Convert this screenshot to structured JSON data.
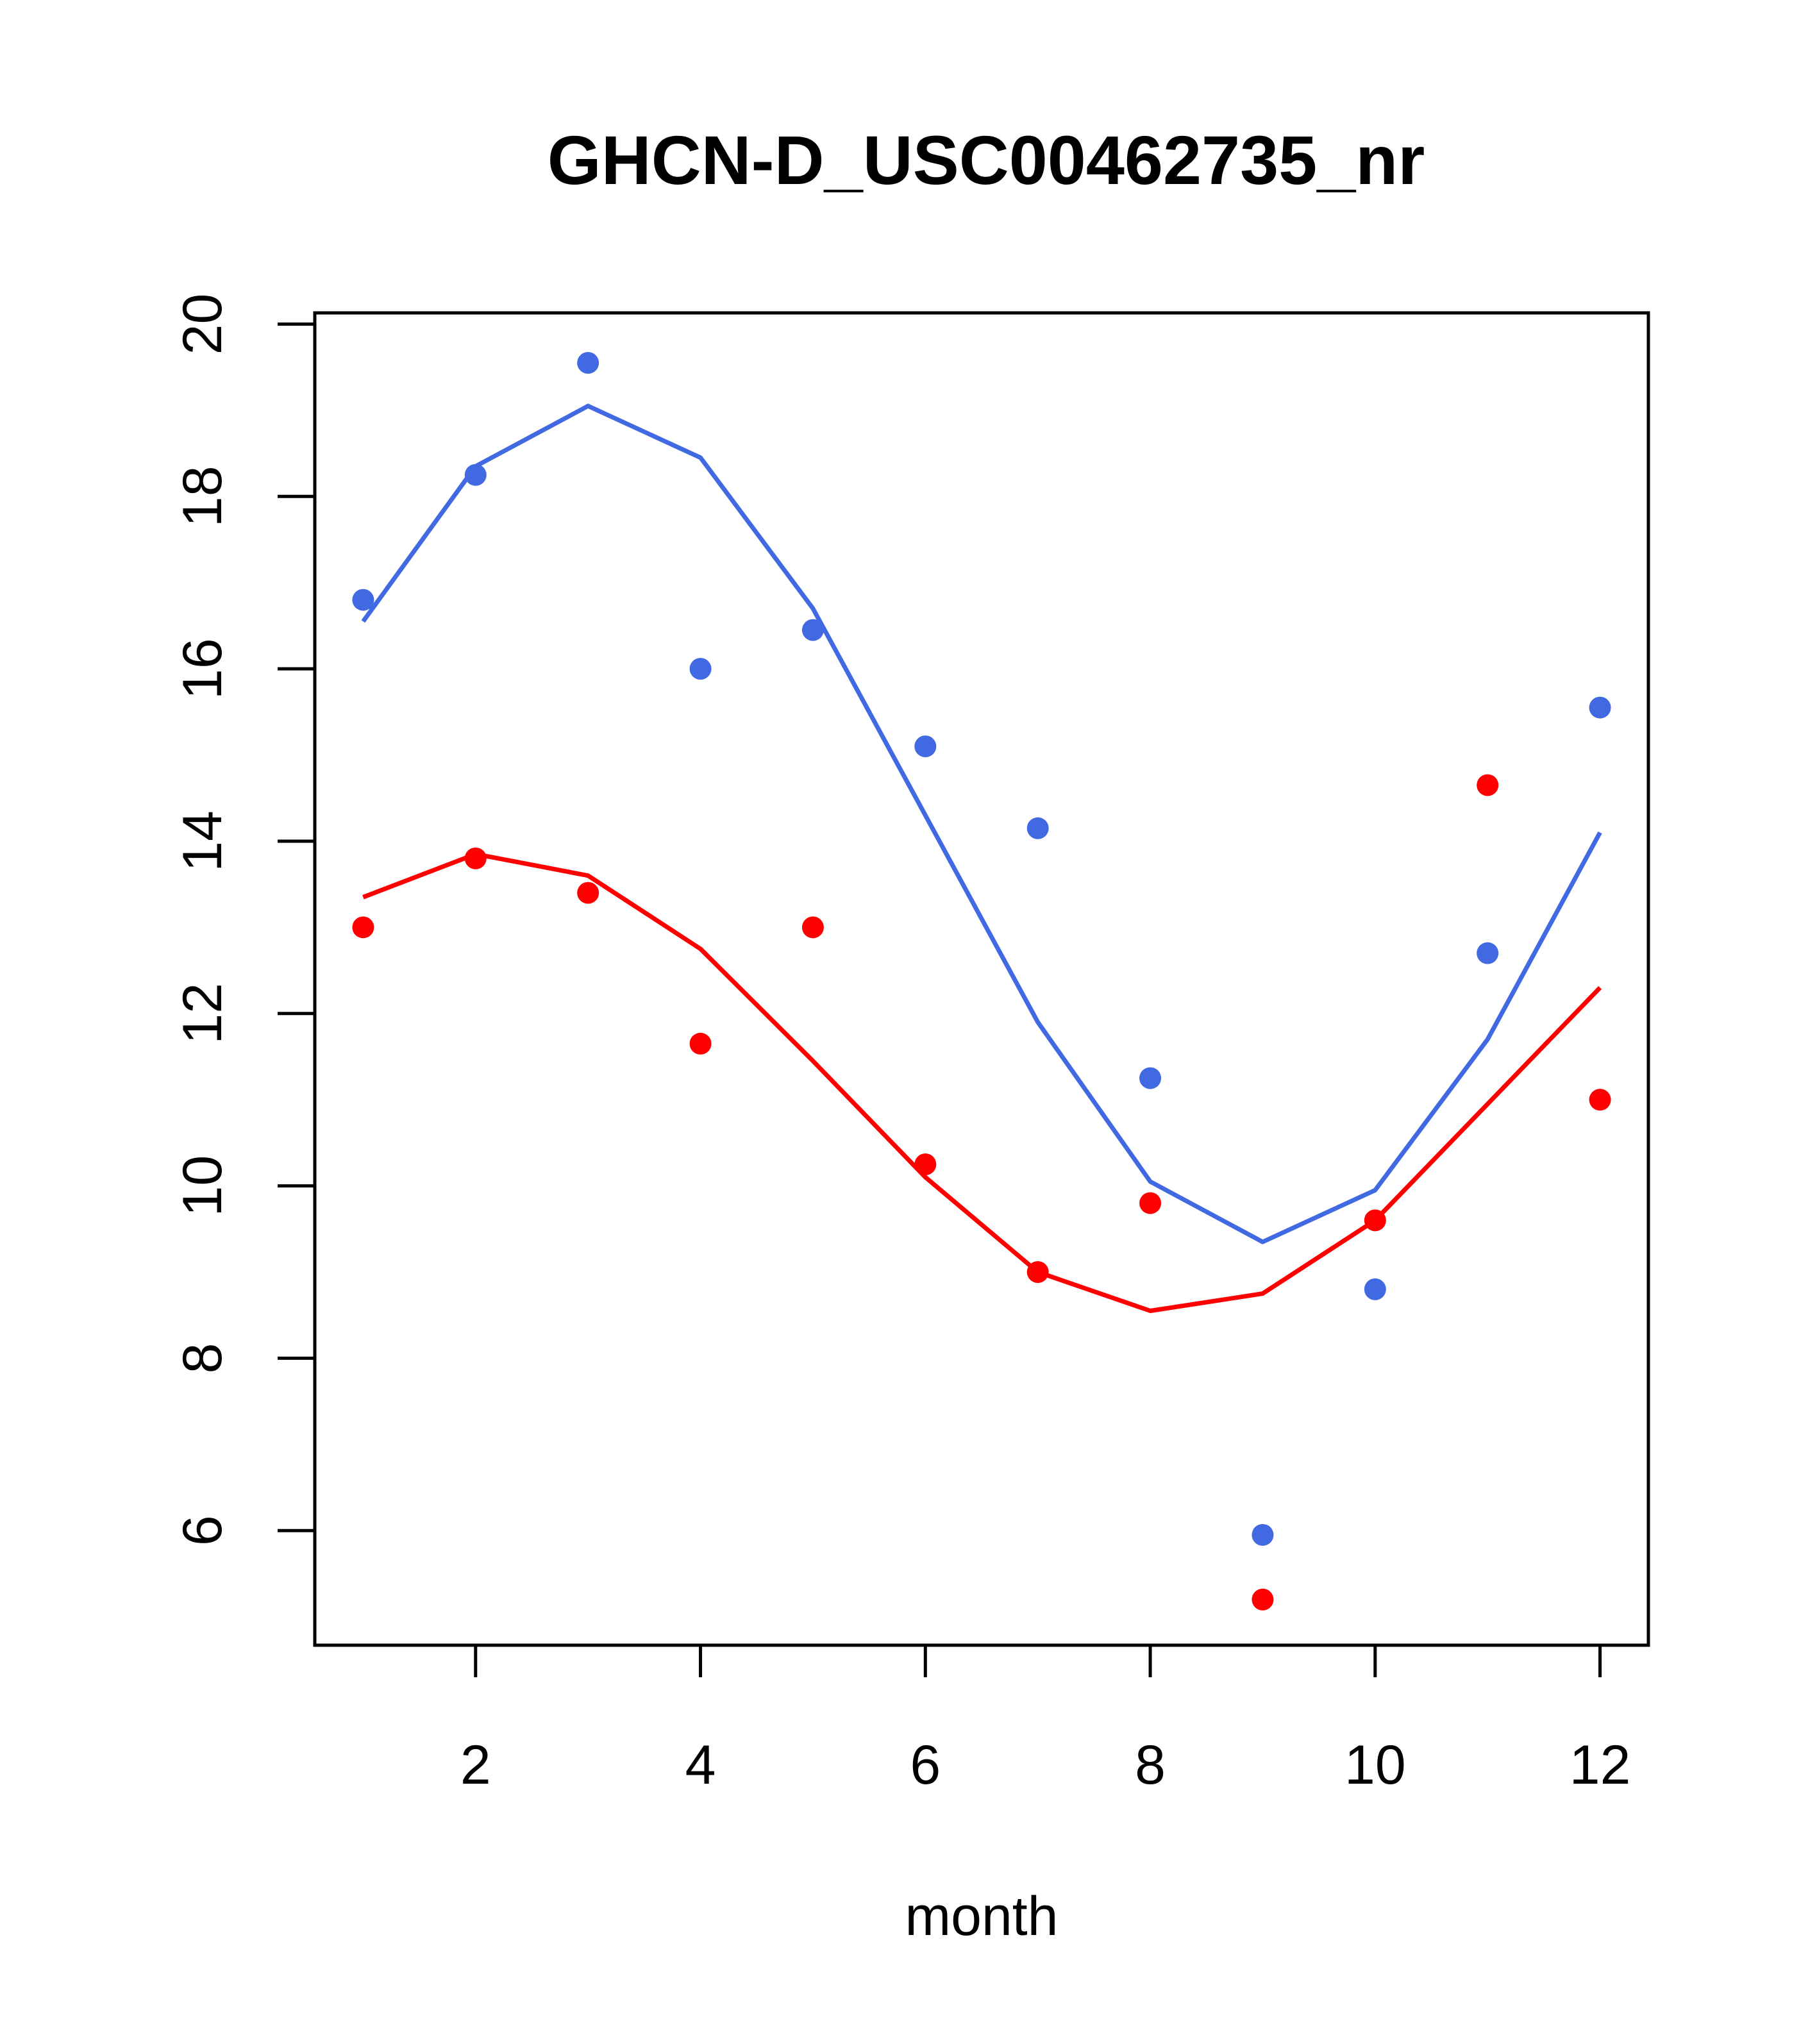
{
  "chart_data": {
    "type": "scatter",
    "title": "GHCN-D_USC00462735_nr",
    "xlabel": "month",
    "ylabel": "",
    "xlim": [
      0.57,
      12.43
    ],
    "ylim": [
      4.67,
      20.13
    ],
    "xticks": [
      2,
      4,
      6,
      8,
      10,
      12
    ],
    "yticks": [
      6,
      8,
      10,
      12,
      14,
      16,
      18,
      20
    ],
    "grid": false,
    "legend": "none",
    "series": [
      {
        "color": "#4169E1",
        "x": [
          1,
          2,
          3,
          4,
          5,
          6,
          7,
          8,
          9,
          10,
          11,
          12
        ],
        "points": [
          16.8,
          18.25,
          19.55,
          16.0,
          16.45,
          15.1,
          14.15,
          11.25,
          5.95,
          8.8,
          12.7,
          15.55
        ],
        "line": [
          16.55,
          18.35,
          19.05,
          18.45,
          16.7,
          14.3,
          11.9,
          10.05,
          9.35,
          9.95,
          11.7,
          14.1
        ]
      },
      {
        "color": "#FF0000",
        "x": [
          1,
          2,
          3,
          4,
          5,
          6,
          7,
          8,
          9,
          10,
          11,
          12
        ],
        "points": [
          13.0,
          13.8,
          13.4,
          11.65,
          13.0,
          10.25,
          9.0,
          9.8,
          5.2,
          9.6,
          14.65,
          11.0
        ],
        "line": [
          13.35,
          13.85,
          13.6,
          12.75,
          11.45,
          10.1,
          9.0,
          8.55,
          8.75,
          9.6,
          10.95,
          12.3
        ]
      }
    ]
  }
}
